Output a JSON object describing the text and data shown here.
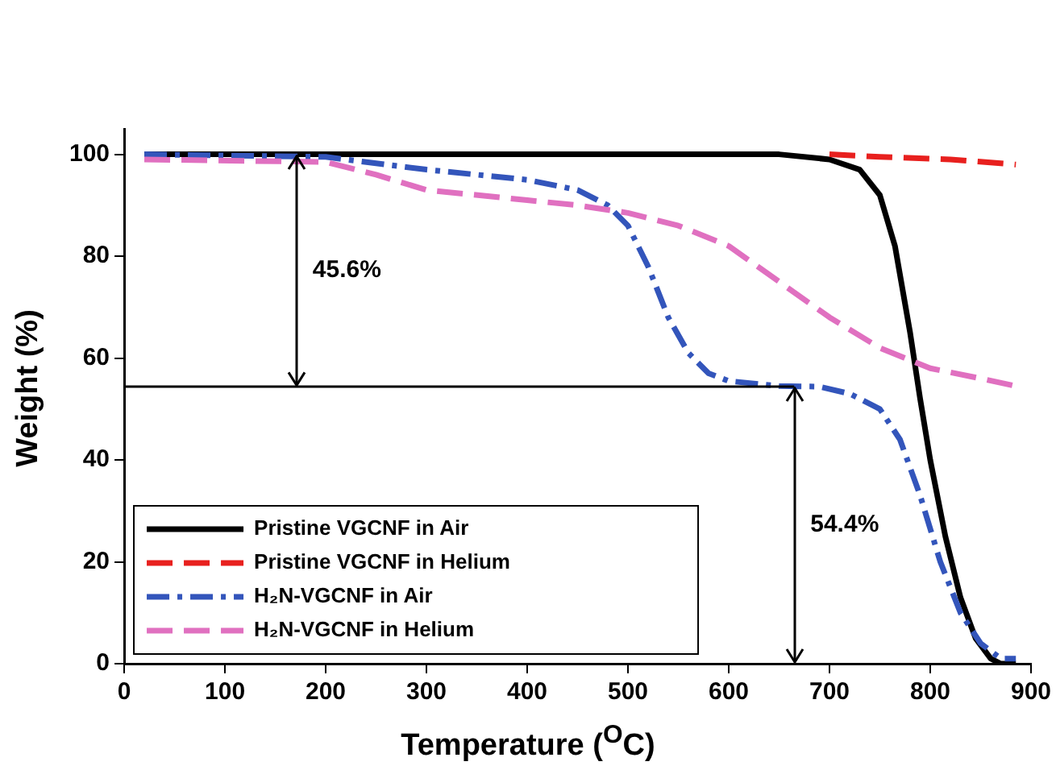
{
  "chart_data": {
    "type": "line",
    "xlabel": "Temperature ($^{O}$C)",
    "ylabel": "Weight (%)",
    "xlim": [
      0,
      900
    ],
    "xticks": [
      0,
      100,
      200,
      300,
      400,
      500,
      600,
      700,
      800,
      900
    ],
    "ylim": [
      0,
      105
    ],
    "yticks": [
      0,
      20,
      40,
      60,
      80,
      100
    ],
    "grid": false,
    "legend": "bottom left",
    "marker": "none",
    "series": [
      {
        "name": "Pristine VGCNF in Air",
        "color": "#000000",
        "line_style": "solid",
        "x": [
          20,
          650,
          700,
          730,
          750,
          765,
          780,
          790,
          800,
          815,
          830,
          845,
          860,
          870,
          885
        ],
        "values": [
          100,
          100,
          99,
          97,
          92,
          82,
          65,
          52,
          40,
          25,
          13,
          5,
          1,
          0,
          0
        ]
      },
      {
        "name": "Pristine VGCNF in Helium",
        "color": "#e8201e",
        "line_style": "dashed",
        "x": [
          700,
          750,
          820,
          885
        ],
        "values": [
          100,
          99.5,
          99,
          98
        ]
      },
      {
        "name": "H₂N-VGCNF in Air",
        "color": "#3355bb",
        "line_style": "dashdot",
        "x": [
          20,
          200,
          300,
          400,
          450,
          480,
          500,
          520,
          540,
          560,
          580,
          600,
          650,
          690,
          720,
          750,
          770,
          790,
          810,
          830,
          850,
          870,
          885
        ],
        "values": [
          100,
          99.5,
          97,
          95,
          93,
          90,
          86,
          78,
          68,
          61,
          57,
          55.5,
          54.5,
          54.4,
          53,
          50,
          44,
          33,
          20,
          10,
          4,
          1,
          1
        ]
      },
      {
        "name": "H₂N-VGCNF in Helium",
        "color": "#e070c0",
        "line_style": "dashed",
        "x": [
          20,
          200,
          250,
          300,
          400,
          450,
          500,
          550,
          600,
          650,
          700,
          750,
          800,
          850,
          885
        ],
        "values": [
          99,
          98.5,
          96,
          93,
          91,
          90,
          88.5,
          86,
          82,
          75,
          68,
          62,
          58,
          56,
          54.5
        ]
      },
      {
        "color": "#000000",
        "line_style": "solid",
        "x": [
          0,
          665
        ],
        "values": [
          54.4,
          54.4
        ]
      }
    ],
    "annotations": [
      "45.6%",
      "54.4%"
    ]
  }
}
